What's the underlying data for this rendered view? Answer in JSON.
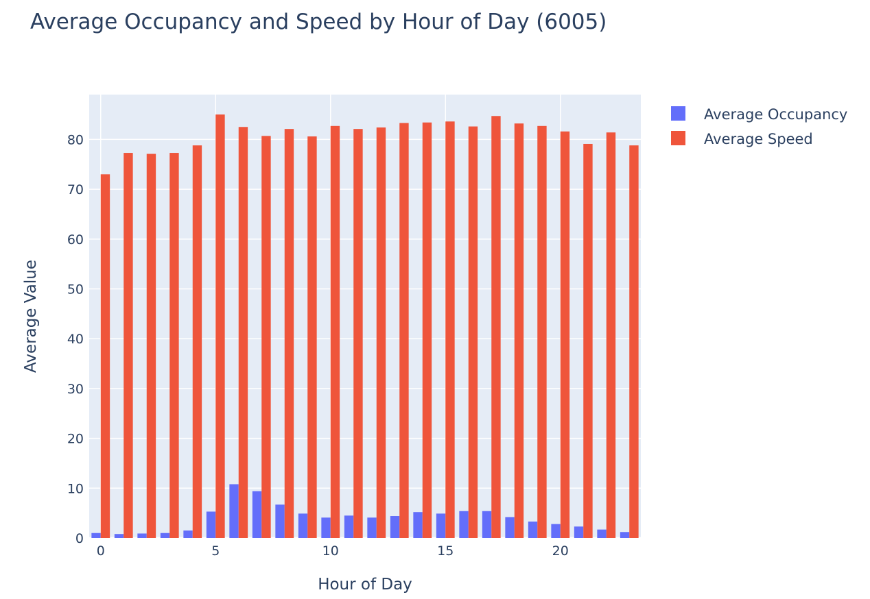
{
  "chart_data": {
    "type": "bar",
    "title": "Average Occupancy and Speed by Hour of Day (6005)",
    "xlabel": "Hour of Day",
    "ylabel": "Average Value",
    "x": [
      0,
      1,
      2,
      3,
      4,
      5,
      6,
      7,
      8,
      9,
      10,
      11,
      12,
      13,
      14,
      15,
      16,
      17,
      18,
      19,
      20,
      21,
      22,
      23
    ],
    "x_ticks": [
      0,
      5,
      10,
      15,
      20
    ],
    "y_ticks": [
      0,
      10,
      20,
      30,
      40,
      50,
      60,
      70,
      80
    ],
    "ylim": [
      0,
      89
    ],
    "xlim": [
      -0.5,
      23.5
    ],
    "grid": true,
    "legend_position": "top-right",
    "barmode": "group",
    "series": [
      {
        "name": "Average Occupancy",
        "color": "#636efa",
        "values": [
          1.0,
          0.8,
          0.9,
          1.0,
          1.5,
          5.3,
          10.8,
          9.4,
          6.7,
          4.9,
          4.1,
          4.5,
          4.1,
          4.4,
          5.2,
          4.9,
          5.4,
          5.4,
          4.2,
          3.3,
          2.8,
          2.3,
          1.7,
          1.2
        ]
      },
      {
        "name": "Average Speed",
        "color": "#ef553b",
        "values": [
          73.0,
          77.3,
          77.1,
          77.3,
          78.8,
          85.0,
          82.5,
          80.7,
          82.1,
          80.6,
          82.7,
          82.1,
          82.4,
          83.3,
          83.4,
          83.6,
          82.6,
          84.7,
          83.2,
          82.7,
          81.6,
          79.1,
          81.4,
          78.8
        ]
      }
    ]
  }
}
